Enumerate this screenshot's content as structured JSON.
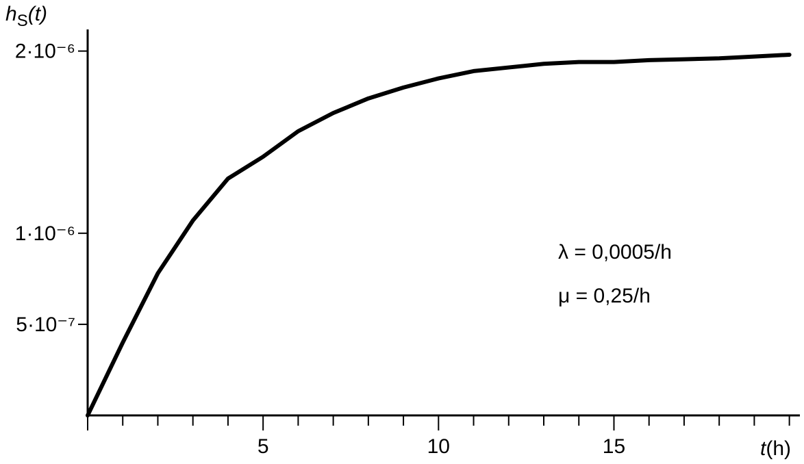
{
  "chart_data": {
    "type": "line",
    "y_label": {
      "main": "h",
      "sub": "S",
      "rest": "(t)"
    },
    "x_label": {
      "main": "t",
      "rest": "(h)"
    },
    "annotations": [
      "λ = 0,0005/h",
      "μ = 0,25/h"
    ],
    "x": [
      0,
      1,
      2,
      3,
      4,
      5,
      6,
      7,
      8,
      9,
      10,
      11,
      12,
      13,
      14,
      15,
      16,
      17,
      18,
      19,
      20
    ],
    "series": [
      {
        "color": "#000000",
        "values": [
          0,
          4e-07,
          7.8e-07,
          1.07e-06,
          1.3e-06,
          1.42e-06,
          1.56e-06,
          1.66e-06,
          1.74e-06,
          1.8e-06,
          1.85e-06,
          1.89e-06,
          1.91e-06,
          1.93e-06,
          1.94e-06,
          1.94e-06,
          1.95e-06,
          1.955e-06,
          1.96e-06,
          1.97e-06,
          1.98e-06
        ]
      }
    ],
    "xlim": [
      0,
      20.3
    ],
    "xticks": [
      5,
      10,
      15
    ],
    "xminorticks": [
      1,
      2,
      3,
      4,
      6,
      7,
      8,
      9,
      11,
      12,
      13,
      14,
      16,
      17,
      18,
      19,
      20
    ],
    "ylim": [
      0,
      2.1e-06
    ],
    "yticks": [
      {
        "value": 5e-07,
        "label": "5·10⁻⁷"
      },
      {
        "value": 1e-06,
        "label": "1·10⁻⁶"
      },
      {
        "value": 2e-06,
        "label": "2·10⁻⁶"
      }
    ],
    "grid": false
  }
}
